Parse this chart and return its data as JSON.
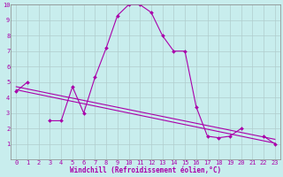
{
  "xlabel": "Windchill (Refroidissement éolien,°C)",
  "xlim": [
    -0.5,
    23.5
  ],
  "ylim": [
    0,
    10
  ],
  "xticks": [
    0,
    1,
    2,
    3,
    4,
    5,
    6,
    7,
    8,
    9,
    10,
    11,
    12,
    13,
    14,
    15,
    16,
    17,
    18,
    19,
    20,
    21,
    22,
    23
  ],
  "yticks": [
    1,
    2,
    3,
    4,
    5,
    6,
    7,
    8,
    9,
    10
  ],
  "background_color": "#c8eded",
  "grid_color": "#b0cccc",
  "line_color": "#aa00aa",
  "line1_x": [
    0,
    1,
    2,
    3,
    4,
    5,
    6,
    7,
    8,
    9,
    10,
    11,
    12,
    13,
    14,
    15,
    16,
    17,
    18,
    19,
    20,
    21,
    22,
    23
  ],
  "line1_y": [
    4.4,
    5.0,
    null,
    2.5,
    2.5,
    4.7,
    3.0,
    5.3,
    7.2,
    9.3,
    10.0,
    10.0,
    9.5,
    8.0,
    7.0,
    7.0,
    3.4,
    1.5,
    1.4,
    1.5,
    2.0,
    null,
    1.5,
    1.0
  ],
  "line2_x": [
    0,
    23
  ],
  "line2_y": [
    4.5,
    1.05
  ],
  "line3_x": [
    0,
    23
  ],
  "line3_y": [
    4.7,
    1.3
  ],
  "font_size_label": 5.5,
  "font_size_tick": 5.0,
  "marker": "D",
  "marker_size": 2.0,
  "linewidth": 0.8
}
